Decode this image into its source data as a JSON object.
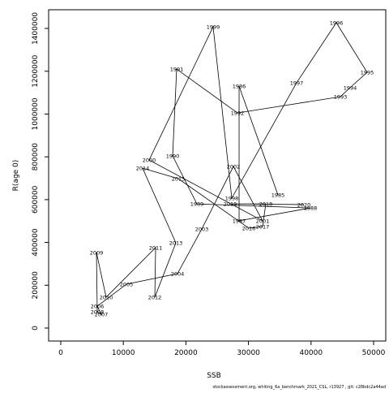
{
  "chart_data": {
    "type": "scatter",
    "x_label": "SSB",
    "y_label": "R(age 0)",
    "footnote": "stockassessment.org, whiting_6a_benchmark_2021_CSL, r13927 , git: c28bdc2a44ad",
    "x": [
      34715,
      28500,
      28500,
      39900,
      21760,
      17880,
      18520,
      28240,
      44690,
      46240,
      48960,
      44040,
      37690,
      27330,
      24350,
      14120,
      32250,
      27590,
      22540,
      18650,
      10490,
      5830,
      6480,
      5830,
      5700,
      7250,
      15160,
      15030,
      18390,
      13080,
      18780,
      30050,
      32250,
      32770,
      27070,
      38860
    ],
    "labels": [
      "1985",
      "1986",
      "1987",
      "1988",
      "1989",
      "1990",
      "1991",
      "1992",
      "1993",
      "1994",
      "1995",
      "1996",
      "1997",
      "1998",
      "1999",
      "2000",
      "2001",
      "2002",
      "2003",
      "2004",
      "2005",
      "2006",
      "2007",
      "2008",
      "2009",
      "2010",
      "2011",
      "2012",
      "2013",
      "2014",
      "2015",
      "2016",
      "2017",
      "2018",
      "2019",
      "2020"
    ],
    "series": [
      {
        "color": "#000000",
        "label_color": "#ff0000",
        "values": [
          622000,
          1130000,
          501000,
          561000,
          580000,
          804000,
          1210000,
          1005000,
          1081000,
          1123000,
          1195000,
          1427000,
          1146000,
          607000,
          1408000,
          785000,
          501000,
          755000,
          463000,
          254000,
          205000,
          102000,
          64000,
          76000,
          353000,
          144000,
          376000,
          144000,
          398000,
          747000,
          698000,
          467000,
          474000,
          580000,
          580000,
          577000
        ]
      }
    ],
    "xlim": [
      -1943,
      51943
    ],
    "ylim": [
      -60700,
      1487300
    ],
    "xticks": [
      0,
      10000,
      20000,
      30000,
      40000,
      50000
    ],
    "yticks": [
      0,
      200000,
      400000,
      600000,
      800000,
      1000000,
      1200000,
      1400000
    ]
  }
}
